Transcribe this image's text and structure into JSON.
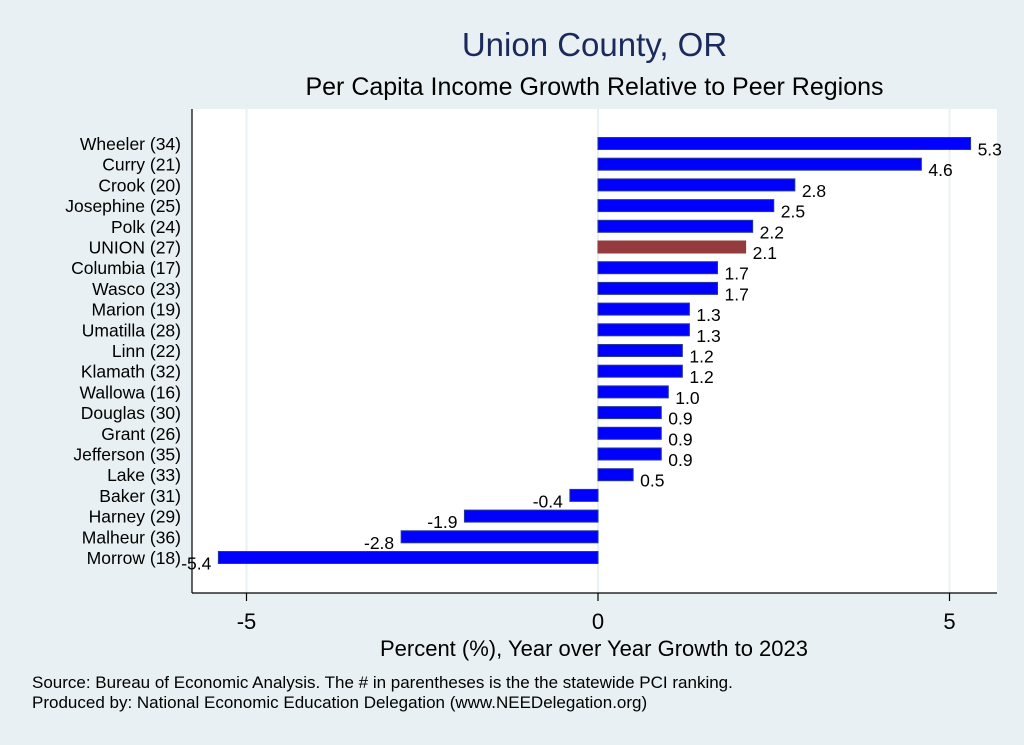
{
  "chart_data": {
    "type": "bar",
    "orientation": "horizontal",
    "title": "Union County, OR",
    "subtitle": "Per Capita Income Growth Relative to Peer Regions",
    "xlabel": "Percent (%), Year over Year Growth to 2023",
    "ylabel": "",
    "xlim": [
      -5.55,
      5.7
    ],
    "xticks": [
      -5,
      0,
      5
    ],
    "xtick_labels": [
      "-5",
      "0",
      "5"
    ],
    "grid": true,
    "categories": [
      "Wheeler (34)",
      "Curry (21)",
      "Crook (20)",
      "Josephine (25)",
      "Polk (24)",
      "UNION (27)",
      "Columbia (17)",
      "Wasco (23)",
      "Marion (19)",
      "Umatilla (28)",
      "Linn (22)",
      "Klamath (32)",
      "Wallowa (16)",
      "Douglas (30)",
      "Grant (26)",
      "Jefferson (35)",
      "Lake (33)",
      "Baker (31)",
      "Harney (29)",
      "Malheur (36)",
      "Morrow (18)"
    ],
    "values": [
      5.3,
      4.6,
      2.8,
      2.5,
      2.2,
      2.1,
      1.7,
      1.7,
      1.3,
      1.3,
      1.2,
      1.2,
      1.0,
      0.9,
      0.9,
      0.9,
      0.5,
      -0.4,
      -1.9,
      -2.8,
      -5.4
    ],
    "value_labels": [
      "5.3",
      "4.6",
      "2.8",
      "2.5",
      "2.2",
      "2.1",
      "1.7",
      "1.7",
      "1.3",
      "1.3",
      "1.2",
      "1.2",
      "1.0",
      "0.9",
      "0.9",
      "0.9",
      "0.5",
      "-0.4",
      "-1.9",
      "-2.8",
      "-5.4"
    ],
    "highlight_index": 5,
    "colors": {
      "bar": "#0000ff",
      "highlight": "#943b3e",
      "bar_edge": "#26389a",
      "plot_bg": "#ffffff",
      "page_bg": "#e8f0f3",
      "grid": "#e8f0f3"
    }
  },
  "footer": {
    "source": "Source: Bureau of Economic Analysis. The # in parentheses is the the statewide PCI ranking.",
    "produced_by": "Produced by: National Economic Education Delegation (www.NEEDelegation.org)"
  }
}
